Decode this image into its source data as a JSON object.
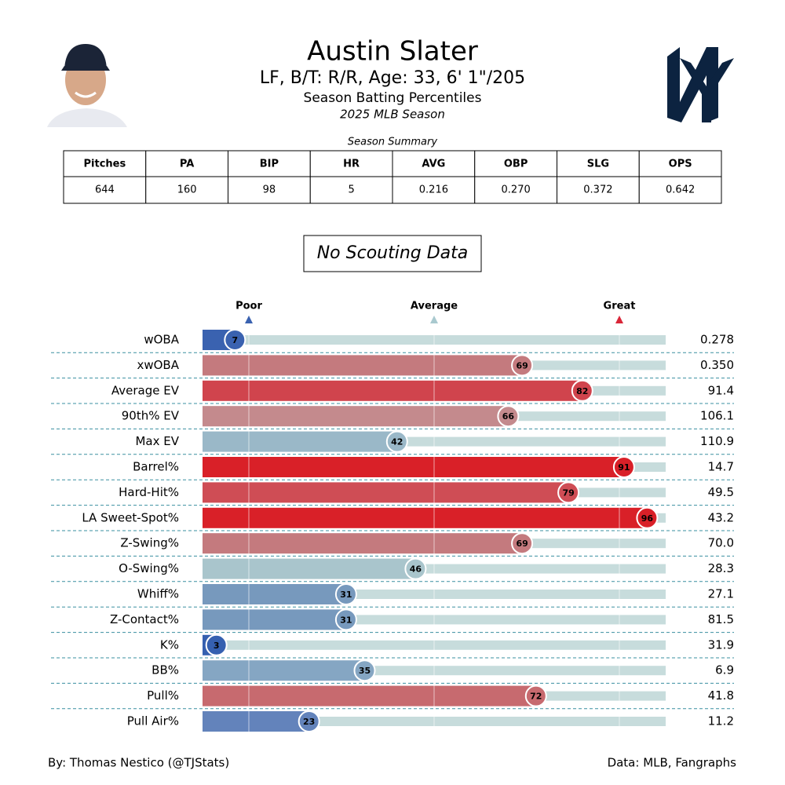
{
  "header": {
    "title": "Austin Slater",
    "subtitle": "LF, B/T: R/R, Age: 33, 6' 1\"/205",
    "description": "Season Batting Percentiles",
    "season": "2025 MLB Season"
  },
  "summary": {
    "caption": "Season Summary",
    "columns": [
      "Pitches",
      "PA",
      "BIP",
      "HR",
      "AVG",
      "OBP",
      "SLG",
      "OPS"
    ],
    "rows": [
      [
        644,
        160,
        98,
        5,
        "0.216",
        "0.270",
        "0.372",
        "0.642"
      ]
    ]
  },
  "scouting": "No Scouting Data",
  "chart_data": {
    "type": "bar",
    "orientation": "horizontal",
    "categories": [
      "wOBA",
      "xwOBA",
      "Average EV",
      "90th% EV",
      "Max EV",
      "Barrel%",
      "Hard-Hit%",
      "LA Sweet-Spot%",
      "Z-Swing%",
      "O-Swing%",
      "Whiff%",
      "Z-Contact%",
      "K%",
      "BB%",
      "Pull%",
      "Pull Air%"
    ],
    "values": [
      7,
      69,
      82,
      66,
      42,
      91,
      79,
      96,
      69,
      46,
      31,
      31,
      3,
      35,
      72,
      23
    ],
    "stat_labels": [
      "0.278",
      "0.350",
      "91.4",
      "106.1",
      "110.9",
      "14.7",
      "49.5",
      "43.2",
      "70.0",
      "28.3",
      "27.1",
      "81.5",
      "31.9",
      "6.9",
      "41.8",
      "11.2"
    ],
    "colors": [
      "#3a62b0",
      "#c47a7e",
      "#d0444d",
      "#c48a8d",
      "#9ab8c8",
      "#d92028",
      "#cf4d55",
      "#d92028",
      "#c47a7e",
      "#a9c5cc",
      "#7799bd",
      "#7799bd",
      "#3560b0",
      "#85a6c3",
      "#c76a6f",
      "#6383bb"
    ],
    "track_color": "#c7dcdc",
    "xlim": [
      0,
      100
    ],
    "xticks": [
      {
        "value": 10,
        "label": "Poor"
      },
      {
        "value": 50,
        "label": "Average"
      },
      {
        "value": 90,
        "label": "Great"
      }
    ],
    "tick_colors": [
      "#3a62b0",
      "#a9c9cf",
      "#d92638"
    ],
    "grid": true
  },
  "footer": {
    "left": "By: Thomas Nestico (@TJStats)",
    "right": "Data: MLB, Fangraphs"
  }
}
